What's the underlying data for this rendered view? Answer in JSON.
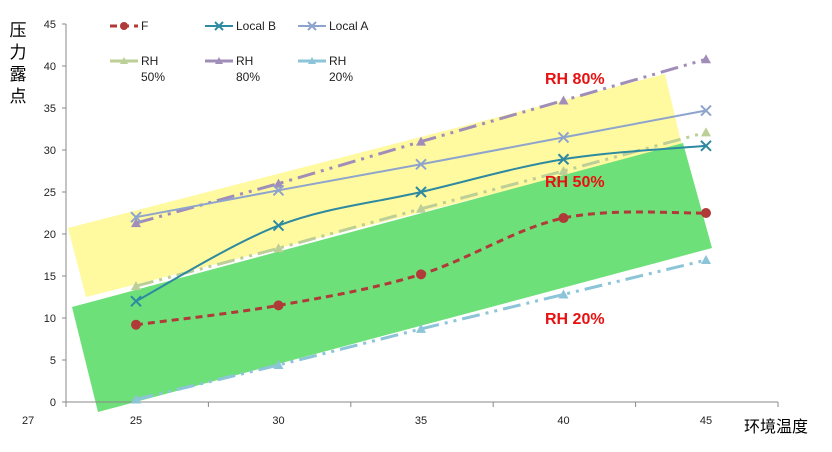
{
  "chart_data": {
    "type": "line",
    "title": "",
    "ylabel": "压力露点",
    "xlabel": "环境温度",
    "corner_label": "27",
    "categories": [
      "25",
      "30",
      "35",
      "40",
      "45"
    ],
    "ylim": [
      0,
      45
    ],
    "yticks": [
      "0",
      "5",
      "10",
      "15",
      "20",
      "25",
      "30",
      "35",
      "40",
      "45"
    ],
    "grid": false,
    "legend": "top",
    "series": [
      {
        "name": "F",
        "values": [
          9.2,
          11.5,
          15.2,
          21.9,
          22.5
        ],
        "color": "#b03a38",
        "style": "dashed",
        "marker": "circle",
        "smooth": true
      },
      {
        "name": "Local B",
        "values": [
          12.0,
          21.0,
          25.0,
          28.9,
          30.5
        ],
        "color": "#2e8aa0",
        "style": "solid",
        "marker": "x",
        "smooth": true
      },
      {
        "name": "Local A",
        "values": [
          22.0,
          25.2,
          28.3,
          31.5,
          34.7
        ],
        "color": "#8ea4cc",
        "style": "solid",
        "marker": "x",
        "smooth": false
      },
      {
        "name": "RH 50%",
        "values": [
          13.8,
          18.3,
          23.0,
          27.5,
          32.1
        ],
        "color": "#bccf96",
        "style": "dashdotdot",
        "marker": "triangle",
        "smooth": false
      },
      {
        "name": "RH 80%",
        "values": [
          21.3,
          26.0,
          31.0,
          35.9,
          40.8
        ],
        "color": "#a08eb8",
        "style": "dashdotdot",
        "marker": "triangle",
        "smooth": false
      },
      {
        "name": "RH 20%",
        "values": [
          0.3,
          4.4,
          8.7,
          12.8,
          16.9
        ],
        "color": "#8cc4d8",
        "style": "dashdotdot",
        "marker": "triangle",
        "smooth": false
      }
    ],
    "legend_entries": [
      {
        "line1": "F",
        "line2": ""
      },
      {
        "line1": "Local B",
        "line2": ""
      },
      {
        "line1": "Local A",
        "line2": ""
      },
      {
        "line1": "RH",
        "line2": "50%"
      },
      {
        "line1": "RH",
        "line2": "80%"
      },
      {
        "line1": "RH",
        "line2": "20%"
      }
    ],
    "annotations": [
      "RH 80%",
      "RH 50%",
      "RH 20%"
    ],
    "band_colors": {
      "yellow": "#fff9a0",
      "green": "#6ee07a"
    },
    "annotation_color": "#e81010"
  }
}
